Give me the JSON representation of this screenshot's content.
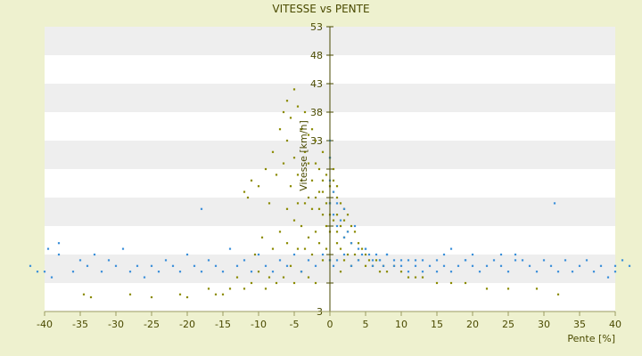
{
  "chart_data": {
    "type": "scatter",
    "title": "VITESSE vs PENTE",
    "xlabel": "Pente [%]",
    "ylabel": "Vitesse [km/h]",
    "xlim": [
      -40,
      40
    ],
    "ylim": [
      3,
      53
    ],
    "xticks": [
      -40,
      -35,
      -30,
      -25,
      -20,
      -15,
      -10,
      -5,
      0,
      5,
      10,
      15,
      20,
      25,
      30,
      35,
      40
    ],
    "yticks": [
      3,
      8,
      13,
      18,
      23,
      28,
      33,
      38,
      43,
      48,
      53
    ],
    "ytick_labels": [
      "3",
      "",
      "",
      "",
      "",
      "",
      "33",
      "38",
      "43",
      "48",
      "53"
    ],
    "grid": "horizontal alternating bands",
    "legend": "none",
    "series": [
      {
        "color": "#8a8a00",
        "x": [
          -34.5,
          -33.5,
          -28,
          -25,
          -21,
          -20,
          -17,
          -16,
          -15,
          -14,
          -13,
          -12,
          -12,
          -11.5,
          -11,
          -11,
          -10.5,
          -10,
          -10,
          -9.5,
          -9,
          -9,
          -8.5,
          -8.5,
          -8,
          -8,
          -7.5,
          -7.5,
          -7,
          -7,
          -6.5,
          -6.5,
          -6.5,
          -6,
          -6,
          -6,
          -6,
          -5.5,
          -5.5,
          -5.5,
          -5,
          -5,
          -5,
          -5,
          -4.5,
          -4.5,
          -4.5,
          -4.5,
          -4,
          -4,
          -4,
          -4,
          -3.5,
          -3.5,
          -3.5,
          -3.5,
          -3,
          -3,
          -3,
          -3,
          -3,
          -2.5,
          -2.5,
          -2.5,
          -2.5,
          -2,
          -2,
          -2,
          -2,
          -2,
          -1.5,
          -1.5,
          -1.5,
          -1.5,
          -1,
          -1,
          -1,
          -1,
          -1,
          -0.5,
          -0.5,
          -0.5,
          -0.5,
          0,
          0,
          0,
          0,
          0,
          0,
          0.5,
          0.5,
          0.5,
          0.5,
          1,
          1,
          1,
          1,
          1,
          1.5,
          1.5,
          1.5,
          1.5,
          2,
          2,
          2,
          2,
          2.5,
          2.5,
          2.5,
          3,
          3,
          3,
          3.5,
          3.5,
          4,
          4,
          4.5,
          5,
          5,
          5.5,
          6,
          6.5,
          7,
          7.5,
          8,
          9,
          10,
          11,
          12,
          13,
          15,
          17,
          19,
          22,
          25,
          29,
          32
        ],
        "y": [
          6,
          5.5,
          6,
          5.5,
          6,
          5.5,
          7,
          6,
          6,
          7,
          9,
          7,
          24,
          23,
          26,
          8,
          13,
          25,
          10,
          16,
          28,
          7,
          22,
          9,
          14,
          31,
          27,
          8,
          35,
          17,
          29,
          38,
          9,
          21,
          40,
          15,
          33,
          25,
          37,
          11,
          42,
          19,
          30,
          8,
          27,
          39,
          14,
          22,
          26,
          35,
          10,
          18,
          31,
          22,
          38,
          14,
          23,
          29,
          16,
          34,
          9,
          26,
          21,
          35,
          13,
          29,
          23,
          17,
          33,
          8,
          28,
          21,
          15,
          24,
          26,
          20,
          31,
          12,
          24,
          22,
          18,
          27,
          14,
          30,
          25,
          20,
          22,
          17,
          12,
          28,
          24,
          19,
          26,
          15,
          23,
          20,
          25,
          17,
          10,
          22,
          18,
          14,
          21,
          19,
          16,
          12,
          20,
          17,
          13,
          18,
          15,
          11,
          17,
          13,
          15,
          12,
          14,
          11,
          13,
          12,
          11,
          12,
          10,
          11,
          10,
          11,
          10,
          9,
          9,
          9,
          8,
          8,
          8,
          7,
          7,
          7,
          6
        ]
      },
      {
        "color": "#3a8fd9",
        "x": [
          -42,
          -41,
          -40,
          -39.5,
          -39,
          -38,
          -36,
          -35,
          -34,
          -33,
          -32,
          -31,
          -30,
          -29,
          -28,
          -27,
          -26,
          -25,
          -24,
          -23,
          -22,
          -21,
          -20,
          -19,
          -18,
          -17,
          -16,
          -15,
          -14,
          -13,
          -12,
          -11,
          -10,
          -9,
          -8,
          -7,
          -6,
          -5,
          -4,
          -3,
          -2,
          -1,
          0,
          0,
          0,
          0,
          0.5,
          0.5,
          1,
          1,
          1.5,
          2,
          2,
          2.5,
          3,
          3.5,
          4,
          4.5,
          5,
          5.5,
          6,
          6.5,
          7,
          7.5,
          8,
          9,
          10,
          11,
          12,
          13,
          14,
          15,
          16,
          17,
          18,
          19,
          20,
          21,
          22,
          23,
          24,
          25,
          26,
          27,
          28,
          29,
          30,
          31,
          32,
          33,
          34,
          35,
          36,
          37,
          38,
          39,
          40,
          41,
          42,
          -38,
          -18,
          0,
          0.5,
          1,
          2,
          3,
          4,
          5,
          6,
          7,
          8,
          9,
          10,
          11,
          12,
          13,
          15,
          16,
          17,
          19,
          20,
          24,
          26,
          31.5,
          40
        ],
        "y": [
          11,
          10,
          10,
          14,
          9,
          13,
          10,
          12,
          11,
          13,
          10,
          12,
          11,
          14,
          10,
          11,
          9,
          11,
          10,
          12,
          11,
          10,
          13,
          11,
          10,
          12,
          11,
          10,
          14,
          11,
          12,
          10,
          13,
          11,
          10,
          12,
          11,
          13,
          10,
          12,
          11,
          13,
          22,
          26,
          30,
          33,
          20,
          24,
          18,
          22,
          19,
          16,
          21,
          17,
          15,
          18,
          14,
          13,
          14,
          13,
          12,
          13,
          12,
          11,
          13,
          12,
          11,
          12,
          12,
          10,
          11,
          12,
          13,
          10,
          11,
          12,
          13,
          10,
          11,
          12,
          11,
          10,
          13,
          12,
          11,
          10,
          12,
          11,
          10,
          12,
          10,
          11,
          12,
          10,
          11,
          9,
          10,
          12,
          11,
          15,
          21,
          12,
          11,
          12,
          13,
          11,
          12,
          14,
          11,
          12,
          13,
          11,
          12,
          10,
          11,
          12,
          10,
          11,
          14,
          12,
          11,
          13,
          12,
          22,
          11
        ]
      }
    ]
  }
}
